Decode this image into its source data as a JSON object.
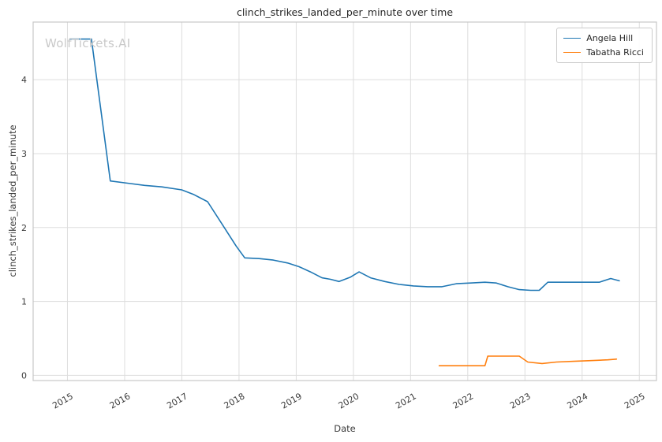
{
  "chart_data": {
    "type": "line",
    "title": "clinch_strikes_landed_per_minute over time",
    "xlabel": "Date",
    "ylabel": "clinch_strikes_landed_per_minute",
    "watermark": "WolfTickets.AI",
    "grid": true,
    "legend_position": "upper right",
    "xlim": [
      2014.4,
      2025.3
    ],
    "ylim": [
      -0.07,
      4.78
    ],
    "x_ticks": [
      2015,
      2016,
      2017,
      2018,
      2019,
      2020,
      2021,
      2022,
      2023,
      2024,
      2025
    ],
    "y_ticks": [
      0,
      1,
      2,
      3,
      4
    ],
    "colors": {
      "grid": "#dddddd",
      "spine": "#c7c7c7",
      "tick_text": "#3b3b3b"
    },
    "series": [
      {
        "name": "Angela Hill",
        "color": "#1f77b4",
        "points": [
          [
            2015.04,
            4.55
          ],
          [
            2015.42,
            4.55
          ],
          [
            2015.75,
            2.63
          ],
          [
            2016.05,
            2.6
          ],
          [
            2016.35,
            2.57
          ],
          [
            2016.65,
            2.55
          ],
          [
            2017.0,
            2.51
          ],
          [
            2017.2,
            2.45
          ],
          [
            2017.45,
            2.35
          ],
          [
            2017.7,
            2.05
          ],
          [
            2017.95,
            1.75
          ],
          [
            2018.1,
            1.59
          ],
          [
            2018.35,
            1.58
          ],
          [
            2018.6,
            1.56
          ],
          [
            2018.85,
            1.52
          ],
          [
            2019.05,
            1.47
          ],
          [
            2019.25,
            1.4
          ],
          [
            2019.45,
            1.32
          ],
          [
            2019.6,
            1.3
          ],
          [
            2019.75,
            1.27
          ],
          [
            2019.95,
            1.33
          ],
          [
            2020.1,
            1.4
          ],
          [
            2020.3,
            1.32
          ],
          [
            2020.55,
            1.27
          ],
          [
            2020.8,
            1.23
          ],
          [
            2021.05,
            1.21
          ],
          [
            2021.3,
            1.2
          ],
          [
            2021.55,
            1.2
          ],
          [
            2021.8,
            1.24
          ],
          [
            2022.05,
            1.25
          ],
          [
            2022.3,
            1.26
          ],
          [
            2022.5,
            1.25
          ],
          [
            2022.7,
            1.2
          ],
          [
            2022.9,
            1.16
          ],
          [
            2023.1,
            1.15
          ],
          [
            2023.25,
            1.15
          ],
          [
            2023.4,
            1.26
          ],
          [
            2023.7,
            1.26
          ],
          [
            2024.0,
            1.26
          ],
          [
            2024.3,
            1.26
          ],
          [
            2024.5,
            1.31
          ],
          [
            2024.65,
            1.28
          ]
        ]
      },
      {
        "name": "Tabatha Ricci",
        "color": "#ff7f0e",
        "points": [
          [
            2021.5,
            0.13
          ],
          [
            2021.8,
            0.13
          ],
          [
            2022.05,
            0.13
          ],
          [
            2022.3,
            0.13
          ],
          [
            2022.35,
            0.26
          ],
          [
            2022.65,
            0.26
          ],
          [
            2022.9,
            0.26
          ],
          [
            2023.05,
            0.18
          ],
          [
            2023.3,
            0.16
          ],
          [
            2023.55,
            0.18
          ],
          [
            2023.85,
            0.19
          ],
          [
            2024.15,
            0.2
          ],
          [
            2024.45,
            0.21
          ],
          [
            2024.6,
            0.22
          ]
        ]
      }
    ]
  }
}
